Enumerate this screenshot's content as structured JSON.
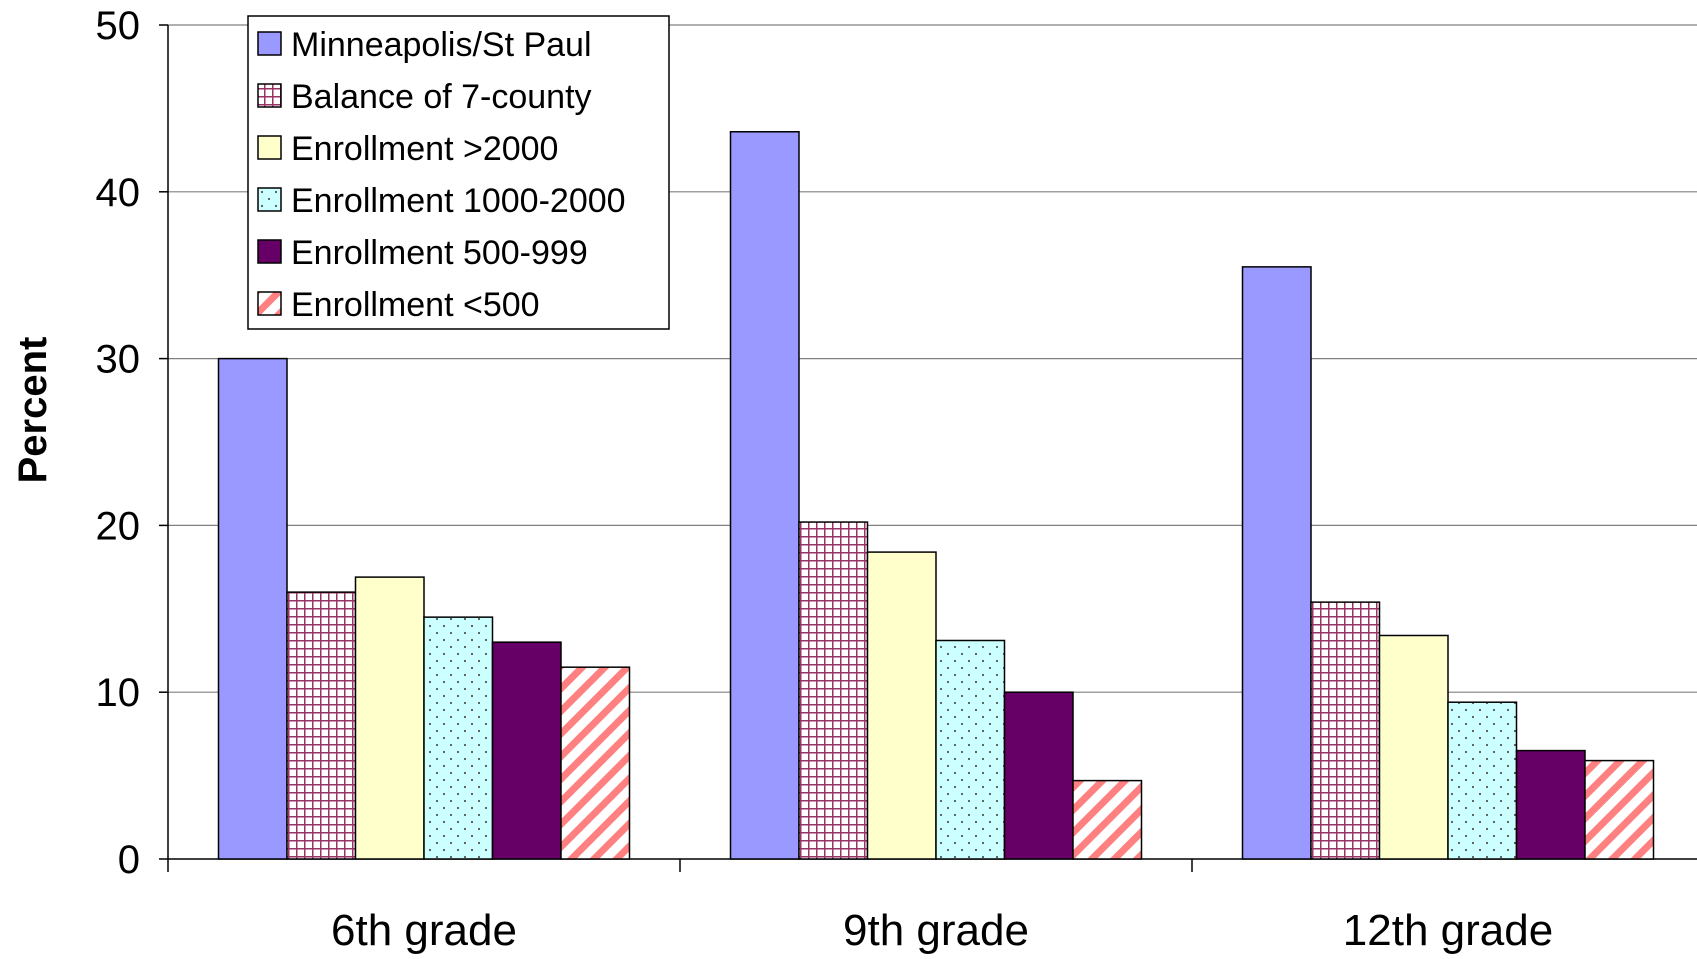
{
  "chart_data": {
    "type": "bar",
    "ylabel": "Percent",
    "xlabel": "",
    "ylim": [
      0,
      50
    ],
    "yticks": [
      0,
      10,
      20,
      30,
      40,
      50
    ],
    "grid": true,
    "legend_position": "top-left",
    "categories": [
      "6th grade",
      "9th grade",
      "12th grade"
    ],
    "series": [
      {
        "name": "Minneapolis/St Paul",
        "values": [
          30.0,
          43.6,
          35.5
        ],
        "color": "#9999ff",
        "pattern": "solid"
      },
      {
        "name": "Balance of 7-county",
        "values": [
          16.0,
          20.2,
          15.4
        ],
        "color": "#993366",
        "pattern": "grid"
      },
      {
        "name": "Enrollment >2000",
        "values": [
          16.9,
          18.4,
          13.4
        ],
        "color": "#ffffcc",
        "pattern": "solid"
      },
      {
        "name": "Enrollment 1000-2000",
        "values": [
          14.5,
          13.1,
          9.4
        ],
        "color": "#ccffff",
        "pattern": "dots"
      },
      {
        "name": "Enrollment 500-999",
        "values": [
          13.0,
          10.0,
          6.5
        ],
        "color": "#660066",
        "pattern": "solid"
      },
      {
        "name": "Enrollment <500",
        "values": [
          11.5,
          4.7,
          5.9
        ],
        "color": "#ff8080",
        "pattern": "diagonal"
      }
    ]
  }
}
